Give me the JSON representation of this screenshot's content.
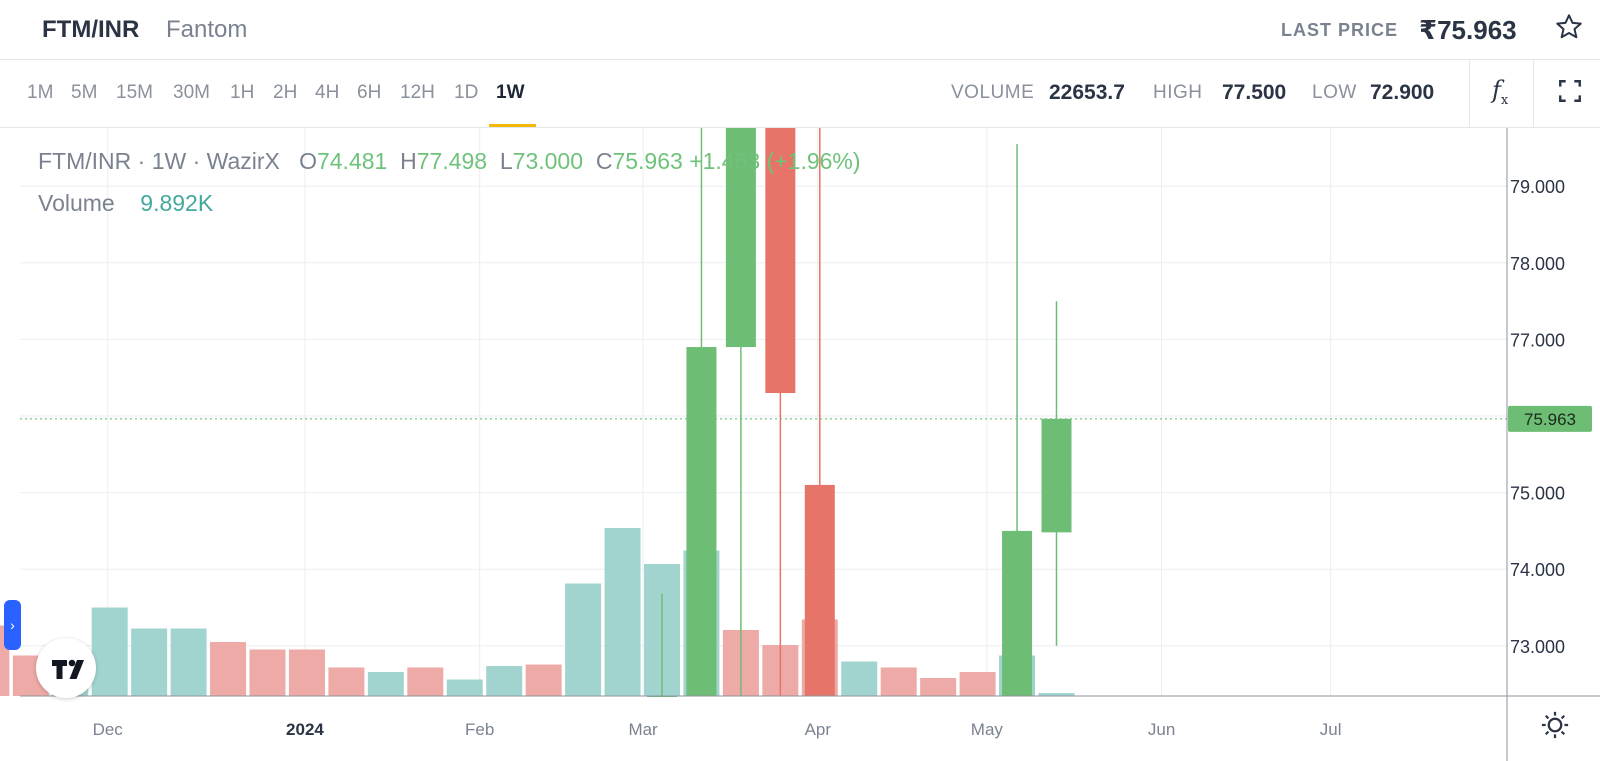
{
  "header": {
    "pair": "FTM/INR",
    "name": "Fantom",
    "last_price_label": "LAST PRICE",
    "last_price": "₹75.963"
  },
  "toolbar": {
    "timeframes": [
      "1M",
      "5M",
      "15M",
      "30M",
      "1H",
      "2H",
      "4H",
      "6H",
      "12H",
      "1D",
      "1W"
    ],
    "active_timeframe": "1W",
    "volume_label": "VOLUME",
    "volume_value": "22653.7",
    "high_label": "HIGH",
    "high_value": "77.500",
    "low_label": "LOW",
    "low_value": "72.900",
    "fx_icon": "function-icon",
    "fullscreen_icon": "fullscreen-icon"
  },
  "legend": {
    "symbol": "FTM/INR · 1W · WazirX",
    "open_label": "O",
    "open": "74.481",
    "high_label": "H",
    "high": "77.498",
    "low_label": "L",
    "low": "73.000",
    "close_label": "C",
    "close": "75.963",
    "change": "+1.463",
    "change_pct": "(+1.96%)",
    "volume_label": "Volume",
    "volume": "9.892K"
  },
  "colors": {
    "up": "#6ebd75",
    "down": "#e77468",
    "vol_up": "#a2d4cf",
    "vol_down": "#eeaaa6",
    "grid": "#eceef1",
    "price_line": "#6ebd75"
  },
  "chart_data": {
    "type": "candlestick",
    "y_range": [
      72.3,
      79.7
    ],
    "y_ticks": [
      "79.000",
      "78.000",
      "77.000",
      "76.000",
      "75.000",
      "74.000",
      "73.000"
    ],
    "x_ticks": [
      "Dec",
      "2024",
      "Feb",
      "Mar",
      "Apr",
      "May",
      "Jun",
      "Jul"
    ],
    "current_price": "75.963",
    "candles": [
      {
        "date": "2024-03-04",
        "open": 72.3,
        "high": 73.68,
        "low": 72.3,
        "close": 72.3,
        "color": "up"
      },
      {
        "date": "2024-03-11",
        "open": 72.3,
        "high": 79.9,
        "low": 72.3,
        "close": 76.9,
        "color": "up"
      },
      {
        "date": "2024-03-18",
        "open": 76.9,
        "high": 80.5,
        "low": 72.3,
        "close": 79.9,
        "color": "up"
      },
      {
        "date": "2024-03-25",
        "open": 79.9,
        "high": 80.5,
        "low": 72.3,
        "close": 76.3,
        "color": "down"
      },
      {
        "date": "2024-04-01",
        "open": 75.1,
        "high": 79.9,
        "low": 72.3,
        "close": 72.3,
        "color": "down"
      },
      {
        "date": "2024-05-06",
        "open": 72.3,
        "high": 79.55,
        "low": 72.3,
        "close": 74.5,
        "color": "up"
      },
      {
        "date": "2024-05-13",
        "open": 74.481,
        "high": 77.498,
        "low": 73.0,
        "close": 75.963,
        "color": "up"
      }
    ],
    "volume": [
      {
        "date": "2023-11-06",
        "rel": 0.47,
        "color": "down"
      },
      {
        "date": "2023-11-13",
        "rel": 0.27,
        "color": "down"
      },
      {
        "date": "2023-11-20",
        "rel": 0.28,
        "color": "up"
      },
      {
        "date": "2023-11-27",
        "rel": 0.59,
        "color": "up"
      },
      {
        "date": "2023-12-04",
        "rel": 0.45,
        "color": "up"
      },
      {
        "date": "2023-12-11",
        "rel": 0.45,
        "color": "up"
      },
      {
        "date": "2023-12-18",
        "rel": 0.36,
        "color": "down"
      },
      {
        "date": "2023-12-25",
        "rel": 0.31,
        "color": "down"
      },
      {
        "date": "2024-01-01",
        "rel": 0.31,
        "color": "down"
      },
      {
        "date": "2024-01-08",
        "rel": 0.19,
        "color": "down"
      },
      {
        "date": "2024-01-15",
        "rel": 0.16,
        "color": "up"
      },
      {
        "date": "2024-01-22",
        "rel": 0.19,
        "color": "down"
      },
      {
        "date": "2024-01-29",
        "rel": 0.11,
        "color": "up"
      },
      {
        "date": "2024-02-05",
        "rel": 0.2,
        "color": "up"
      },
      {
        "date": "2024-02-12",
        "rel": 0.21,
        "color": "down"
      },
      {
        "date": "2024-02-19",
        "rel": 0.75,
        "color": "up"
      },
      {
        "date": "2024-02-26",
        "rel": 1.12,
        "color": "up"
      },
      {
        "date": "2024-03-04",
        "rel": 0.88,
        "color": "up"
      },
      {
        "date": "2024-03-11",
        "rel": 0.97,
        "color": "up"
      },
      {
        "date": "2024-03-18",
        "rel": 0.44,
        "color": "down"
      },
      {
        "date": "2024-03-25",
        "rel": 0.34,
        "color": "down"
      },
      {
        "date": "2024-04-01",
        "rel": 0.51,
        "color": "down"
      },
      {
        "date": "2024-04-08",
        "rel": 0.23,
        "color": "up"
      },
      {
        "date": "2024-04-15",
        "rel": 0.19,
        "color": "down"
      },
      {
        "date": "2024-04-22",
        "rel": 0.12,
        "color": "down"
      },
      {
        "date": "2024-04-29",
        "rel": 0.16,
        "color": "down"
      },
      {
        "date": "2024-05-06",
        "rel": 0.27,
        "color": "up"
      },
      {
        "date": "2024-05-13",
        "rel": 0.02,
        "color": "up"
      }
    ]
  }
}
